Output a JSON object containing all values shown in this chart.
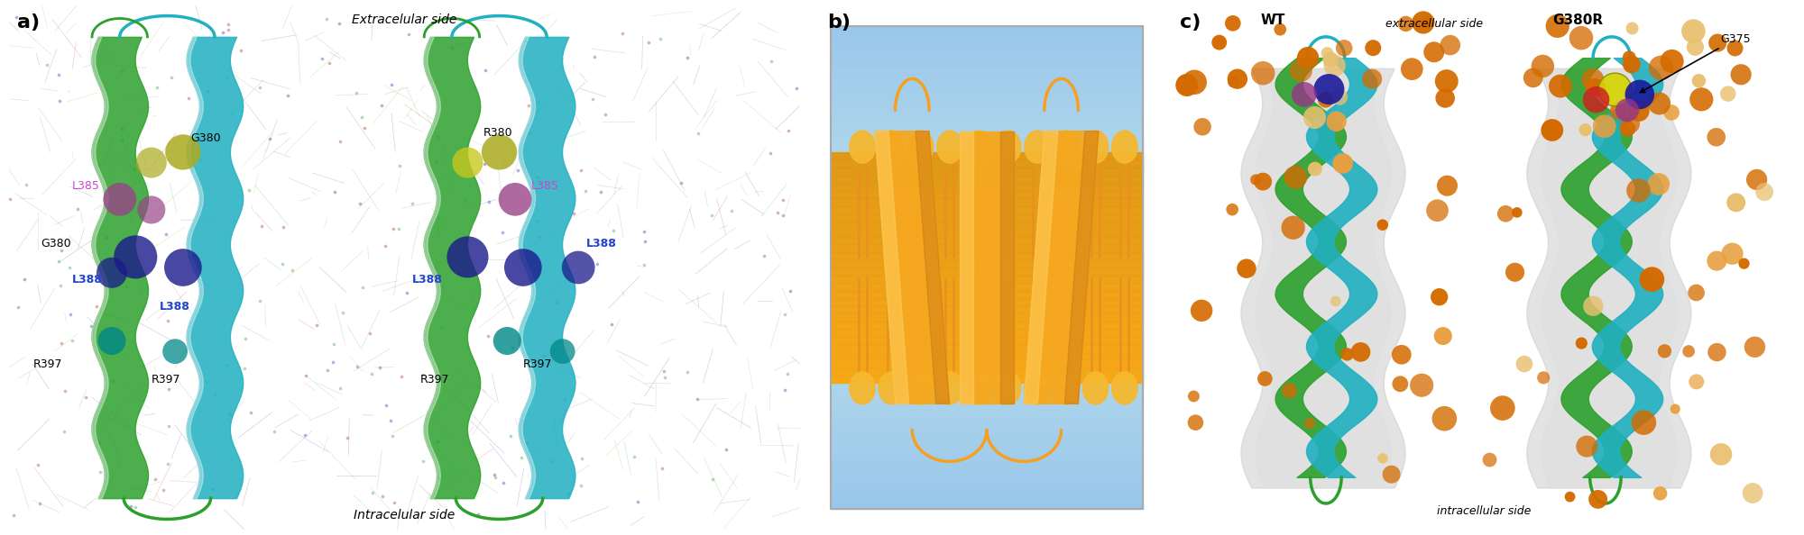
{
  "fig_width": 20.0,
  "fig_height": 5.94,
  "dpi": 100,
  "panel_a_label": "a)",
  "panel_b_label": "b)",
  "panel_c_label": "c)",
  "panel_a_top_text": "Extracelular side",
  "panel_a_bottom_text": "Intracelular side",
  "panel_c_top_text": "extracellular side",
  "panel_c_bottom_text": "intracellular side",
  "panel_c_wt_label": "WT",
  "panel_c_mut_label": "G380R",
  "panel_c_g375_label": "G375",
  "label_fontsize": 16,
  "annotation_fontsize": 11,
  "small_fontsize": 9,
  "bg_color": "#ffffff",
  "green_helix": "#2ca02c",
  "teal_helix": "#20b0c0",
  "orange_main": "#f5a020",
  "orange_dark": "#d46b00",
  "orange_light": "#e8c870",
  "blue_bg": "#a8c8e0",
  "blue_bg_light": "#c8dff0",
  "gray_surface": "#c0c0c0"
}
